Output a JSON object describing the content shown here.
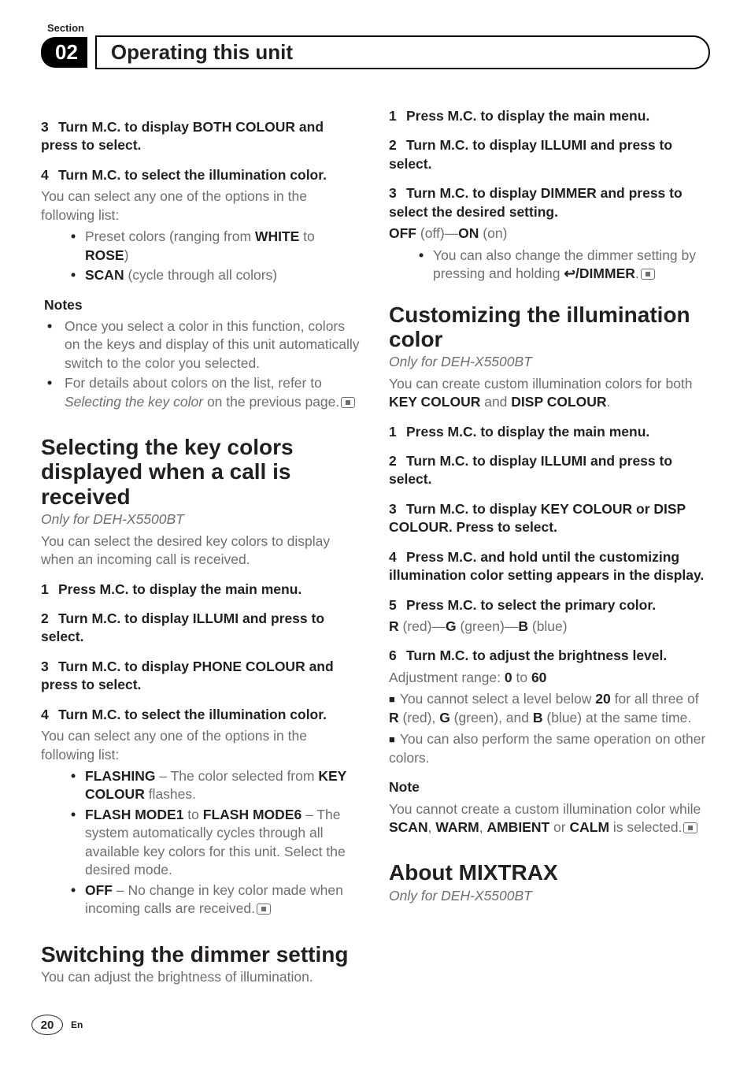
{
  "header": {
    "section_label": "Section",
    "chapter_number": "02",
    "chapter_title": "Operating this unit"
  },
  "left": {
    "step3": "Turn M.C. to display BOTH COLOUR and press to select.",
    "step4": "Turn M.C. to select the illumination color.",
    "step4_body": "You can select any one of the options in the following list:",
    "opt1_pre": "Preset colors (ranging from ",
    "opt1_white": "WHITE",
    "opt1_mid": " to ",
    "opt1_rose": "ROSE",
    "opt1_post": ")",
    "opt2_scan": "SCAN",
    "opt2_rest": " (cycle through all colors)",
    "notes_heading": "Notes",
    "note1": "Once you select a color in this function, colors on the keys and display of this unit automatically switch to the color you selected.",
    "note2_pre": "For details about colors on the list, refer to ",
    "note2_em": "Selecting the key color",
    "note2_post": " on the previous page.",
    "h1a": "Selecting the key colors displayed when a call is received",
    "only_for": "Only for DEH-X5500BT",
    "h1a_body": "You can select the desired key colors to display when an incoming call is received.",
    "a_step1": "Press M.C. to display the main menu.",
    "a_step2": "Turn M.C. to display ILLUMI and press to select.",
    "a_step3": "Turn M.C. to display PHONE COLOUR and press to select.",
    "a_step4": "Turn M.C. to select the illumination color.",
    "a_step4_body": "You can select any one of the options in the following list:",
    "a_opt1_strong": "FLASHING",
    "a_opt1_rest_pre": " – The color selected from ",
    "a_opt1_key": "KEY COLOUR",
    "a_opt1_rest_post": " flashes.",
    "a_opt2_s1": "FLASH MODE1",
    "a_opt2_mid": " to ",
    "a_opt2_s2": "FLASH MODE6",
    "a_opt2_rest": " – The system automatically cycles through all available key colors for this unit. Select the desired mode.",
    "a_opt3_strong": "OFF",
    "a_opt3_rest": " – No change in key color made when incoming calls are received.",
    "h1b": "Switching the dimmer setting",
    "h1b_body": "You can adjust the brightness of illumination."
  },
  "right": {
    "b_step1": "Press M.C. to display the main menu.",
    "b_step2": "Turn M.C. to display ILLUMI and press to select.",
    "b_step3": "Turn M.C. to display DIMMER and press to select the desired setting.",
    "b_off": "OFF",
    "b_off_paren": " (off)—",
    "b_on": "ON",
    "b_on_paren": " (on)",
    "b_bullet_pre": "You can also change the dimmer setting by pressing and holding ",
    "b_dimmer": "/DIMMER",
    "b_bullet_post": ".",
    "h1c": "Customizing the illumination color",
    "only_for": "Only for DEH-X5500BT",
    "c_body_pre": "You can create custom illumination colors for both ",
    "c_key": "KEY COLOUR",
    "c_and": " and ",
    "c_disp": "DISP COLOUR",
    "c_body_post": ".",
    "c_step1": "Press M.C. to display the main menu.",
    "c_step2": "Turn M.C. to display ILLUMI and press to select.",
    "c_step3": "Turn M.C. to display KEY COLOUR or DISP COLOUR. Press to select.",
    "c_step4": "Press M.C. and hold until the customizing illumination color setting appears in the display.",
    "c_step5": "Press M.C. to select the primary color.",
    "c_r": "R",
    "c_r_p": " (red)—",
    "c_g": "G",
    "c_g_p": " (green)—",
    "c_b": "B",
    "c_b_p": " (blue)",
    "c_step6": "Turn M.C. to adjust the brightness level.",
    "c_range_pre": "Adjustment range: ",
    "c_range_0": "0",
    "c_range_mid": " to ",
    "c_range_60": "60",
    "c_sq1_pre": "You cannot select a level below ",
    "c_sq1_20": "20",
    "c_sq1_mid": " for all three of ",
    "c_sq1_post": " (blue) at the same time.",
    "c_sq2": "You can also perform the same operation on other colors.",
    "note_heading": "Note",
    "c_note_pre": "You cannot create a custom illumination color while ",
    "c_scan": "SCAN",
    "c_sep": ", ",
    "c_warm": "WARM",
    "c_amb": "AMBIENT",
    "c_or": " or ",
    "c_calm": "CALM",
    "c_note_post": " is selected.",
    "h1d": "About MIXTRAX"
  },
  "footer": {
    "page": "20",
    "lang": "En"
  }
}
